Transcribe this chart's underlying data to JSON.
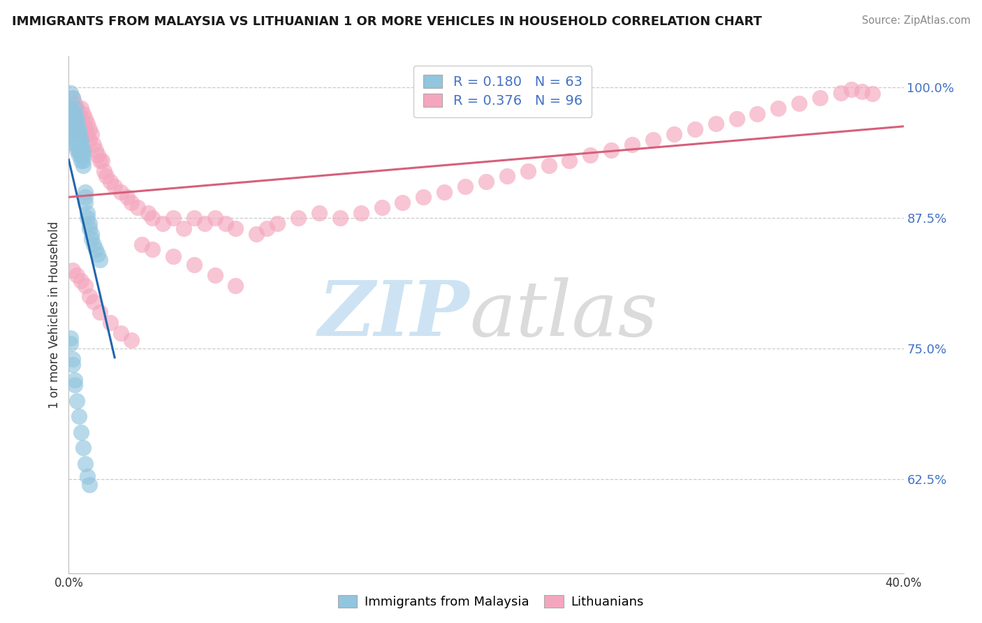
{
  "title": "IMMIGRANTS FROM MALAYSIA VS LITHUANIAN 1 OR MORE VEHICLES IN HOUSEHOLD CORRELATION CHART",
  "source": "Source: ZipAtlas.com",
  "ylabel": "1 or more Vehicles in Household",
  "ytick_labels": [
    "62.5%",
    "75.0%",
    "87.5%",
    "100.0%"
  ],
  "ytick_values": [
    0.625,
    0.75,
    0.875,
    1.0
  ],
  "xlim": [
    0.0,
    0.4
  ],
  "ylim": [
    0.535,
    1.03
  ],
  "legend_blue_R": "R = 0.180",
  "legend_blue_N": "N = 63",
  "legend_pink_R": "R = 0.376",
  "legend_pink_N": "N = 96",
  "blue_color": "#92c5de",
  "pink_color": "#f4a6be",
  "blue_line_color": "#2166ac",
  "pink_line_color": "#d6607a",
  "background_color": "#ffffff",
  "blue_scatter_x": [
    0.001,
    0.001,
    0.002,
    0.002,
    0.002,
    0.002,
    0.002,
    0.003,
    0.003,
    0.003,
    0.003,
    0.003,
    0.003,
    0.003,
    0.003,
    0.004,
    0.004,
    0.004,
    0.004,
    0.004,
    0.004,
    0.004,
    0.005,
    0.005,
    0.005,
    0.005,
    0.005,
    0.005,
    0.006,
    0.006,
    0.006,
    0.006,
    0.006,
    0.007,
    0.007,
    0.007,
    0.007,
    0.008,
    0.008,
    0.008,
    0.009,
    0.009,
    0.01,
    0.01,
    0.011,
    0.011,
    0.012,
    0.013,
    0.014,
    0.015,
    0.001,
    0.001,
    0.002,
    0.002,
    0.003,
    0.003,
    0.004,
    0.005,
    0.006,
    0.007,
    0.008,
    0.009,
    0.01
  ],
  "blue_scatter_y": [
    0.995,
    0.98,
    0.99,
    0.975,
    0.97,
    0.965,
    0.96,
    0.98,
    0.975,
    0.97,
    0.965,
    0.96,
    0.955,
    0.95,
    0.945,
    0.97,
    0.965,
    0.96,
    0.955,
    0.95,
    0.945,
    0.94,
    0.96,
    0.955,
    0.95,
    0.945,
    0.94,
    0.935,
    0.95,
    0.945,
    0.94,
    0.935,
    0.93,
    0.94,
    0.935,
    0.93,
    0.925,
    0.9,
    0.895,
    0.89,
    0.88,
    0.875,
    0.87,
    0.865,
    0.86,
    0.855,
    0.85,
    0.845,
    0.84,
    0.835,
    0.76,
    0.755,
    0.74,
    0.735,
    0.72,
    0.715,
    0.7,
    0.685,
    0.67,
    0.655,
    0.64,
    0.628,
    0.62
  ],
  "pink_scatter_x": [
    0.001,
    0.002,
    0.002,
    0.003,
    0.003,
    0.003,
    0.004,
    0.004,
    0.004,
    0.005,
    0.005,
    0.006,
    0.006,
    0.006,
    0.007,
    0.007,
    0.007,
    0.008,
    0.008,
    0.009,
    0.009,
    0.01,
    0.01,
    0.011,
    0.012,
    0.013,
    0.014,
    0.015,
    0.016,
    0.017,
    0.018,
    0.02,
    0.022,
    0.025,
    0.028,
    0.03,
    0.033,
    0.038,
    0.04,
    0.045,
    0.05,
    0.055,
    0.06,
    0.065,
    0.07,
    0.075,
    0.08,
    0.09,
    0.095,
    0.1,
    0.11,
    0.12,
    0.13,
    0.14,
    0.15,
    0.16,
    0.17,
    0.18,
    0.19,
    0.2,
    0.21,
    0.22,
    0.23,
    0.24,
    0.25,
    0.26,
    0.27,
    0.28,
    0.29,
    0.3,
    0.31,
    0.32,
    0.33,
    0.34,
    0.35,
    0.36,
    0.37,
    0.375,
    0.38,
    0.385,
    0.002,
    0.004,
    0.006,
    0.008,
    0.01,
    0.012,
    0.015,
    0.02,
    0.025,
    0.03,
    0.035,
    0.04,
    0.05,
    0.06,
    0.07,
    0.08
  ],
  "pink_scatter_y": [
    0.975,
    0.99,
    0.97,
    0.985,
    0.975,
    0.965,
    0.98,
    0.97,
    0.96,
    0.975,
    0.965,
    0.98,
    0.97,
    0.96,
    0.975,
    0.965,
    0.955,
    0.97,
    0.96,
    0.965,
    0.955,
    0.96,
    0.95,
    0.955,
    0.945,
    0.94,
    0.935,
    0.93,
    0.93,
    0.92,
    0.915,
    0.91,
    0.905,
    0.9,
    0.895,
    0.89,
    0.885,
    0.88,
    0.875,
    0.87,
    0.875,
    0.865,
    0.875,
    0.87,
    0.875,
    0.87,
    0.865,
    0.86,
    0.865,
    0.87,
    0.875,
    0.88,
    0.875,
    0.88,
    0.885,
    0.89,
    0.895,
    0.9,
    0.905,
    0.91,
    0.915,
    0.92,
    0.925,
    0.93,
    0.935,
    0.94,
    0.945,
    0.95,
    0.955,
    0.96,
    0.965,
    0.97,
    0.975,
    0.98,
    0.985,
    0.99,
    0.995,
    0.998,
    0.996,
    0.994,
    0.825,
    0.82,
    0.815,
    0.81,
    0.8,
    0.795,
    0.785,
    0.775,
    0.765,
    0.758,
    0.85,
    0.845,
    0.838,
    0.83,
    0.82,
    0.81
  ]
}
